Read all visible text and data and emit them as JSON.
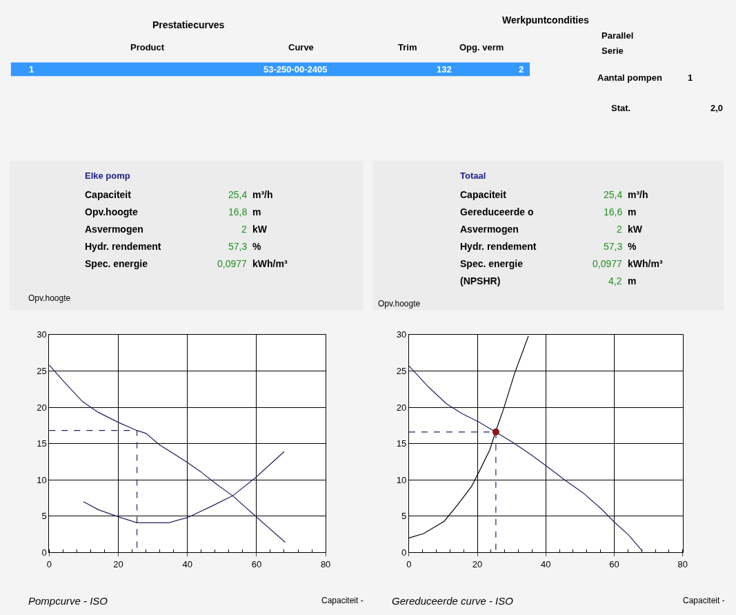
{
  "chart_data": [
    {
      "type": "other",
      "annotations": [
        "Prestatiecurves",
        "Werkpuntcondities",
        "Product",
        "Curve",
        "Trim",
        "Opg. verm",
        "1",
        "53-250-00-2405",
        "132",
        "2",
        "Parallel",
        "Serie",
        "Aantal pompen",
        "1",
        "Stat.",
        "2,0"
      ]
    },
    {
      "type": "line",
      "title": "Elke pomp",
      "xlabel": "Capaciteit -",
      "ylabel": "Opv.hoogte",
      "xlim": [
        0,
        80
      ],
      "ylim": [
        0,
        30
      ],
      "xticks": [
        0,
        20,
        40,
        60,
        80
      ],
      "yticks": [
        0,
        5,
        10,
        15,
        20,
        25,
        30
      ],
      "grid": true,
      "annotations": [
        "Capaciteit",
        "25,4",
        "m³/h",
        "Opv.hoogte",
        "16,8",
        "m",
        "Asvermogen",
        "2",
        "kW",
        "Hydr. rendement",
        "57,3",
        "%",
        "Spec. energie",
        "0,0977",
        "kWh/m³",
        "Pompcurve - ISO"
      ],
      "series": [
        {
          "color": "#202060",
          "x": [
            0,
            4.3,
            9.6,
            14.2,
            20.1,
            25.4,
            28.0,
            32.0,
            40.0,
            43.9,
            47.9,
            53.1,
            59.7,
            68.3
          ],
          "values": [
            25.8,
            23.5,
            20.8,
            19.3,
            17.9,
            16.8,
            16.4,
            14.8,
            12.4,
            11.1,
            9.6,
            7.8,
            5.0,
            1.4
          ]
        },
        {
          "color": "#202060",
          "x": [
            9.9,
            14.2,
            19.5,
            25.4,
            34.6,
            40.0,
            47.1,
            53.1,
            59.7,
            68.0
          ],
          "values": [
            7.0,
            5.9,
            5.0,
            4.1,
            4.1,
            4.8,
            6.4,
            7.8,
            10.3,
            13.9
          ]
        },
        {
          "color": "#202060",
          "line_style": "dashed",
          "x": [
            0,
            25.4,
            25.4
          ],
          "values": [
            16.8,
            16.8,
            0
          ]
        }
      ]
    },
    {
      "type": "line",
      "title": "Totaal",
      "xlabel": "Capaciteit -",
      "ylabel": "Opv.hoogte",
      "xlim": [
        0,
        80
      ],
      "ylim": [
        0,
        30
      ],
      "xticks": [
        0,
        20,
        40,
        60,
        80
      ],
      "yticks": [
        0,
        5,
        10,
        15,
        20,
        25,
        30
      ],
      "grid": true,
      "annotations": [
        "Capaciteit",
        "25,4",
        "m³/h",
        "Gereduceerde o",
        "16,6",
        "m",
        "Asvermogen",
        "2",
        "kW",
        "Hydr. rendement",
        "57,3",
        "%",
        "Spec. energie",
        "0,0977",
        "kWh/m³",
        "(NPSHR)",
        "4,2",
        "m",
        "Gereduceerde curve - ISO"
      ],
      "series": [
        {
          "color": "#202060",
          "x": [
            0,
            5.7,
            10.9,
            15.6,
            20.3,
            25.3,
            30.2,
            35.6,
            40.2,
            45.5,
            50.9,
            56.2,
            60.2,
            64.2,
            68.2
          ],
          "values": [
            25.7,
            22.8,
            20.5,
            19.1,
            18.0,
            16.6,
            15.2,
            13.5,
            11.9,
            10.0,
            8.2,
            6.0,
            4.1,
            2.4,
            0.2
          ]
        },
        {
          "color": "#000000",
          "x": [
            0,
            4.3,
            10.3,
            14.3,
            18.3,
            21.0,
            23.6,
            25.3,
            27.6,
            30.9,
            34.9
          ],
          "values": [
            2.0,
            2.6,
            4.3,
            6.6,
            9.1,
            11.6,
            14.1,
            16.6,
            19.7,
            24.7,
            29.8
          ]
        },
        {
          "color": "#202060",
          "line_style": "dashed",
          "x": [
            0,
            25.4,
            25.4
          ],
          "values": [
            16.6,
            16.6,
            0
          ]
        },
        {
          "type": "scatter",
          "marker": "circle",
          "color": "#8b1a1a",
          "x": [
            25.4
          ],
          "values": [
            16.6
          ]
        }
      ]
    }
  ]
}
